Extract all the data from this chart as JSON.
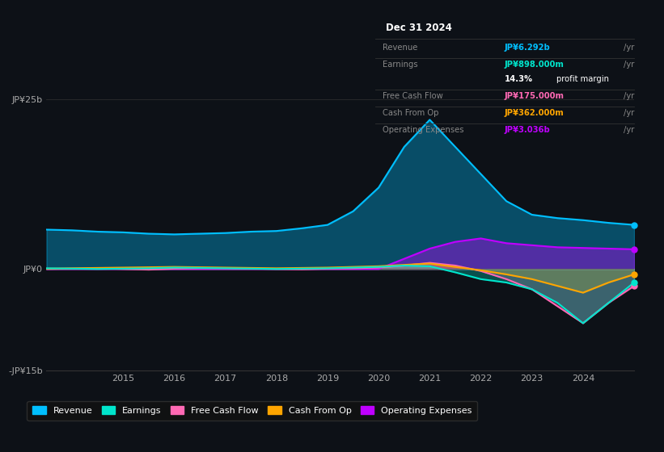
{
  "background_color": "#0d1117",
  "plot_bg_color": "#0d1117",
  "info_box": {
    "title": "Dec 31 2024",
    "rows": [
      {
        "label": "Revenue",
        "value": "JP¥6.292b /yr",
        "color": "#00bfff"
      },
      {
        "label": "Earnings",
        "value": "JP¥898.000m /yr",
        "color": "#00e5cc"
      },
      {
        "label": "",
        "value": "14.3% profit margin",
        "color": "#ffffff",
        "bold_part": "14.3%"
      },
      {
        "label": "Free Cash Flow",
        "value": "JP¥175.000m /yr",
        "color": "#ff69b4"
      },
      {
        "label": "Cash From Op",
        "value": "JP¥362.000m /yr",
        "color": "#ffa500"
      },
      {
        "label": "Operating Expenses",
        "value": "JP¥3.036b /yr",
        "color": "#bf00ff"
      }
    ]
  },
  "ylim": [
    -15,
    25
  ],
  "yticks": [
    -15,
    0,
    25
  ],
  "ytick_labels": [
    "-JP¥15b",
    "JP¥0",
    "JP¥25b"
  ],
  "xlabel_years": [
    2015,
    2016,
    2017,
    2018,
    2019,
    2020,
    2021,
    2022,
    2023,
    2024
  ],
  "series": {
    "revenue": {
      "color": "#00bfff",
      "fill_alpha": 0.35,
      "label": "Revenue"
    },
    "earnings": {
      "color": "#00e5cc",
      "fill_alpha": 0.3,
      "label": "Earnings"
    },
    "free_cash_flow": {
      "color": "#ff69b4",
      "fill_alpha": 0.3,
      "label": "Free Cash Flow"
    },
    "cash_from_op": {
      "color": "#ffa500",
      "fill_alpha": 0.3,
      "label": "Cash From Op"
    },
    "operating_expenses": {
      "color": "#bf00ff",
      "fill_alpha": 0.4,
      "label": "Operating Expenses"
    }
  },
  "x": [
    2013.5,
    2014.0,
    2014.5,
    2015.0,
    2015.5,
    2016.0,
    2016.5,
    2017.0,
    2017.5,
    2018.0,
    2018.5,
    2019.0,
    2019.5,
    2020.0,
    2020.5,
    2021.0,
    2021.5,
    2022.0,
    2022.5,
    2023.0,
    2023.5,
    2024.0,
    2024.5,
    2025.0
  ],
  "revenue": [
    5.8,
    5.7,
    5.5,
    5.4,
    5.2,
    5.1,
    5.2,
    5.3,
    5.5,
    5.6,
    6.0,
    6.5,
    8.5,
    12.0,
    18.0,
    22.0,
    18.0,
    14.0,
    10.0,
    8.0,
    7.5,
    7.2,
    6.8,
    6.5
  ],
  "earnings": [
    0.1,
    0.05,
    0.0,
    0.05,
    0.1,
    0.2,
    0.15,
    0.1,
    0.05,
    0.0,
    0.05,
    0.1,
    0.2,
    0.3,
    0.5,
    0.4,
    -0.5,
    -1.5,
    -2.0,
    -3.0,
    -5.0,
    -8.0,
    -5.0,
    -2.0
  ],
  "free_cash_flow": [
    0.0,
    0.05,
    0.1,
    0.0,
    -0.1,
    0.05,
    0.1,
    0.1,
    0.05,
    0.0,
    -0.05,
    0.05,
    0.1,
    0.2,
    0.5,
    0.9,
    0.5,
    -0.3,
    -1.5,
    -3.0,
    -5.5,
    -8.0,
    -5.0,
    -2.5
  ],
  "cash_from_op": [
    0.05,
    0.1,
    0.15,
    0.2,
    0.25,
    0.3,
    0.25,
    0.2,
    0.15,
    0.1,
    0.15,
    0.2,
    0.3,
    0.4,
    0.6,
    0.8,
    0.3,
    -0.2,
    -0.8,
    -1.5,
    -2.5,
    -3.5,
    -2.0,
    -0.8
  ],
  "operating_expenses": [
    0.0,
    0.0,
    0.0,
    0.0,
    0.0,
    0.0,
    0.0,
    0.0,
    0.0,
    0.0,
    0.0,
    0.0,
    0.0,
    0.0,
    1.5,
    3.0,
    4.0,
    4.5,
    3.8,
    3.5,
    3.2,
    3.1,
    3.0,
    2.9
  ],
  "legend": [
    {
      "label": "Revenue",
      "color": "#00bfff"
    },
    {
      "label": "Earnings",
      "color": "#00e5cc"
    },
    {
      "label": "Free Cash Flow",
      "color": "#ff69b4"
    },
    {
      "label": "Cash From Op",
      "color": "#ffa500"
    },
    {
      "label": "Operating Expenses",
      "color": "#bf00ff"
    }
  ]
}
